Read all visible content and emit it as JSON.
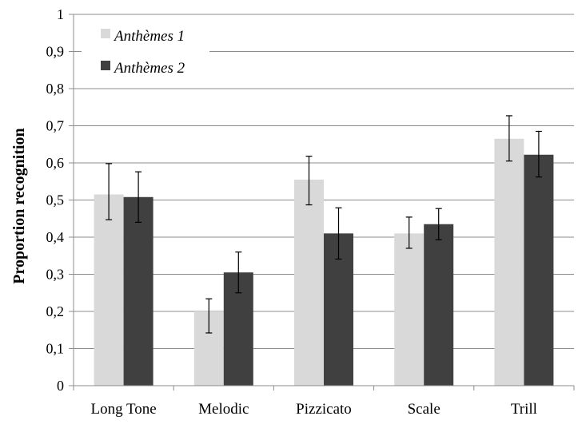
{
  "chart_data": {
    "type": "bar",
    "title": "",
    "xlabel": "",
    "ylabel": "Proportion recognition",
    "ylim": [
      0,
      1
    ],
    "yticks": [
      "0",
      "0,1",
      "0,2",
      "0,3",
      "0,4",
      "0,5",
      "0,6",
      "0,7",
      "0,8",
      "0,9",
      "1"
    ],
    "categories": [
      "Long Tone",
      "Melodic",
      "Pizzicato",
      "Scale",
      "Trill"
    ],
    "grid": "horizontal",
    "legend_position": "top-left",
    "series": [
      {
        "name": "Anthèmes 1",
        "color": "#d9d9d9",
        "values": [
          0.515,
          0.2,
          0.555,
          0.41,
          0.665
        ],
        "error_low": [
          0.447,
          0.142,
          0.487,
          0.37,
          0.605
        ],
        "error_high": [
          0.598,
          0.234,
          0.618,
          0.454,
          0.727
        ]
      },
      {
        "name": "Anthèmes 2",
        "color": "#404040",
        "values": [
          0.508,
          0.305,
          0.41,
          0.435,
          0.622
        ],
        "error_low": [
          0.44,
          0.25,
          0.341,
          0.393,
          0.562
        ],
        "error_high": [
          0.576,
          0.36,
          0.479,
          0.477,
          0.685
        ]
      }
    ]
  }
}
